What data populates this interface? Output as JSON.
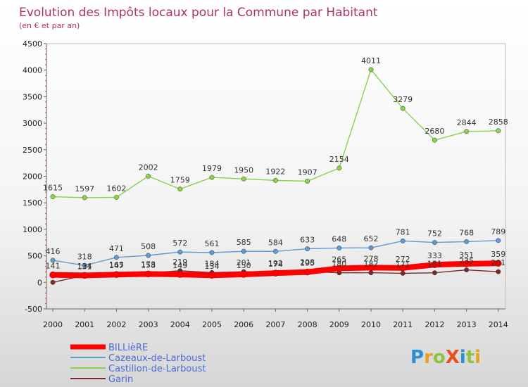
{
  "chart_data": {
    "type": "line",
    "title": "Evolution des Impôts locaux pour la Commune par Habitant",
    "subtitle": "(en € et par an)",
    "x": [
      "2000",
      "2001",
      "2002",
      "2003",
      "2004",
      "2005",
      "2006",
      "2007",
      "2008",
      "2009",
      "2010",
      "2011",
      "2012",
      "2013",
      "2014"
    ],
    "ylim": [
      -500,
      4500
    ],
    "yticks": [
      -500,
      0,
      500,
      1000,
      1500,
      2000,
      2500,
      3000,
      3500,
      4000,
      4500
    ],
    "grid": false,
    "legend_position": "bottom-left",
    "series": [
      {
        "name": "BILLièRE",
        "color": "#ff0000",
        "values": [
          141,
          131,
          147,
          158,
          149,
          134,
          150,
          174,
          195,
          265,
          278,
          272,
          333,
          351,
          359
        ],
        "labels": [
          "141",
          "131",
          "147",
          "158",
          "149",
          "134",
          "150",
          "174",
          "195",
          "265",
          "278",
          "272",
          "333",
          "351",
          "359"
        ]
      },
      {
        "name": "Cazeaux-de-Larboust",
        "color": "#5f9bd4",
        "values": [
          416,
          318,
          471,
          508,
          572,
          561,
          585,
          584,
          633,
          648,
          652,
          781,
          752,
          768,
          789
        ],
        "labels": [
          "416",
          "318",
          "471",
          "508",
          "572",
          "561",
          "585",
          "584",
          "633",
          "648",
          "652",
          "781",
          "752",
          "768",
          "789"
        ]
      },
      {
        "name": "Castillon-de-Larboust",
        "color": "#8bd24a",
        "values": [
          1615,
          1597,
          1602,
          2002,
          1759,
          1979,
          1950,
          1922,
          1907,
          2154,
          4011,
          3279,
          2680,
          2844,
          2858
        ],
        "labels": [
          "1615",
          "1597",
          "1602",
          "2002",
          "1759",
          "1979",
          "1950",
          "1922",
          "1907",
          "2154",
          "4011",
          "3279",
          "2680",
          "2844",
          "2858"
        ]
      },
      {
        "name": "Garin",
        "color": "#7a2a2a",
        "values": [
          0,
          134,
          165,
          173,
          219,
          184,
          201,
          192,
          208,
          180,
          182,
          171,
          181,
          235,
          201
        ],
        "labels": [
          "",
          "134",
          "165",
          "173",
          "219",
          "184",
          "201",
          "192",
          "208",
          "180",
          "182",
          "171",
          "181",
          "235",
          "201"
        ]
      }
    ]
  },
  "branding": {
    "logo_text": "ProXiti"
  }
}
